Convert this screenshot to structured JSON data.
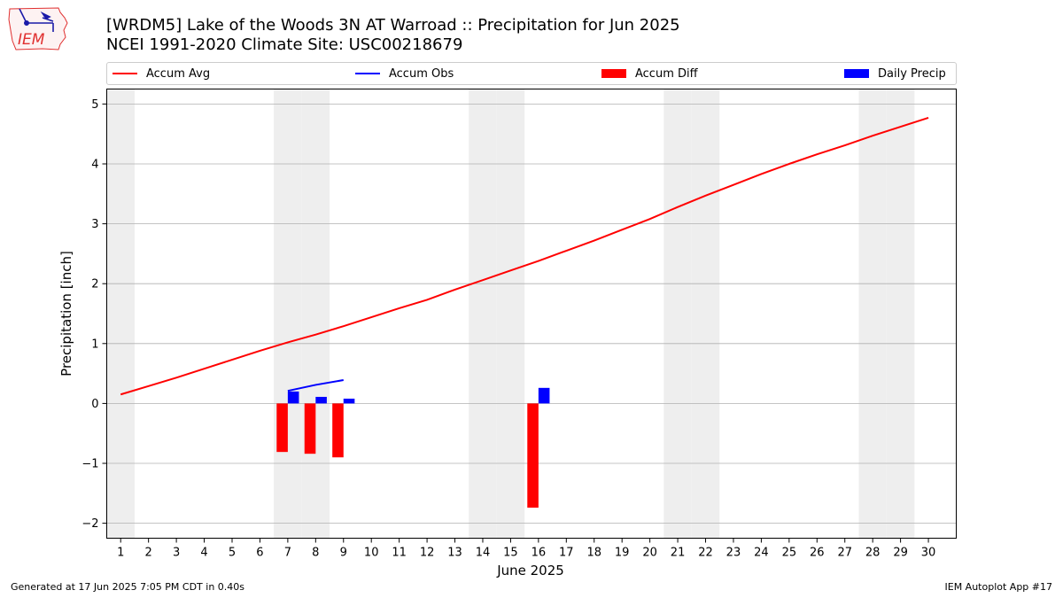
{
  "header": {
    "title_line1": "[WRDM5] Lake of the Woods 3N AT Warroad :: Precipitation for Jun 2025",
    "title_line2": "NCEI 1991-2020 Climate Site: USC00218679",
    "logo_text": "IEM",
    "logo_icon": "iowa-weather-station-logo"
  },
  "footer": {
    "left": "Generated at 17 Jun 2025 7:05 PM CDT in 0.40s",
    "right": "IEM Autoplot App #17"
  },
  "colors": {
    "accum_avg": "#ff0000",
    "accum_obs": "#0000ff",
    "accum_diff": "#ff0000",
    "daily_precip": "#0000ff",
    "weekend_band": "#eeeeee",
    "grid": "#b0b0b0"
  },
  "chart_data": {
    "type": "bar",
    "title": "[WRDM5] Lake of the Woods 3N AT Warroad :: Precipitation for Jun 2025",
    "subtitle": "NCEI 1991-2020 Climate Site: USC00218679",
    "xlabel": "June 2025",
    "ylabel": "Precipitation [inch]",
    "xlim": [
      0.5,
      31
    ],
    "ylim": [
      -2.25,
      5.25
    ],
    "grid": "horizontal",
    "legend_position": "top",
    "x_ticks": [
      1,
      2,
      3,
      4,
      5,
      6,
      7,
      8,
      9,
      10,
      11,
      12,
      13,
      14,
      15,
      16,
      17,
      18,
      19,
      20,
      21,
      22,
      23,
      24,
      25,
      26,
      27,
      28,
      29,
      30
    ],
    "y_ticks": [
      -2,
      -1,
      0,
      1,
      2,
      3,
      4,
      5
    ],
    "y_tick_labels": [
      "−2",
      "−1",
      "0",
      "1",
      "2",
      "3",
      "4",
      "5"
    ],
    "weekend_days": [
      1,
      7,
      8,
      14,
      15,
      21,
      22,
      28,
      29
    ],
    "series": [
      {
        "name": "Accum Avg",
        "kind": "line",
        "x": [
          1,
          2,
          3,
          4,
          5,
          6,
          7,
          8,
          9,
          10,
          11,
          12,
          13,
          14,
          15,
          16,
          17,
          18,
          19,
          20,
          21,
          22,
          23,
          24,
          25,
          26,
          27,
          28,
          29,
          30
        ],
        "values": [
          0.15,
          0.29,
          0.43,
          0.58,
          0.73,
          0.88,
          1.02,
          1.15,
          1.29,
          1.44,
          1.59,
          1.73,
          1.9,
          2.06,
          2.22,
          2.38,
          2.55,
          2.72,
          2.9,
          3.08,
          3.28,
          3.47,
          3.65,
          3.83,
          4.0,
          4.16,
          4.31,
          4.47,
          4.62,
          4.77
        ]
      },
      {
        "name": "Accum Obs",
        "kind": "line",
        "x": [
          7,
          8,
          9
        ],
        "values": [
          0.21,
          0.31,
          0.39
        ]
      },
      {
        "name": "Accum Diff",
        "kind": "bar",
        "x": [
          7,
          8,
          9,
          16
        ],
        "values": [
          -0.81,
          -0.84,
          -0.9,
          -1.74
        ]
      },
      {
        "name": "Daily Precip",
        "kind": "bar",
        "x": [
          7,
          8,
          9,
          16
        ],
        "values": [
          0.2,
          0.11,
          0.08,
          0.26
        ]
      }
    ]
  }
}
